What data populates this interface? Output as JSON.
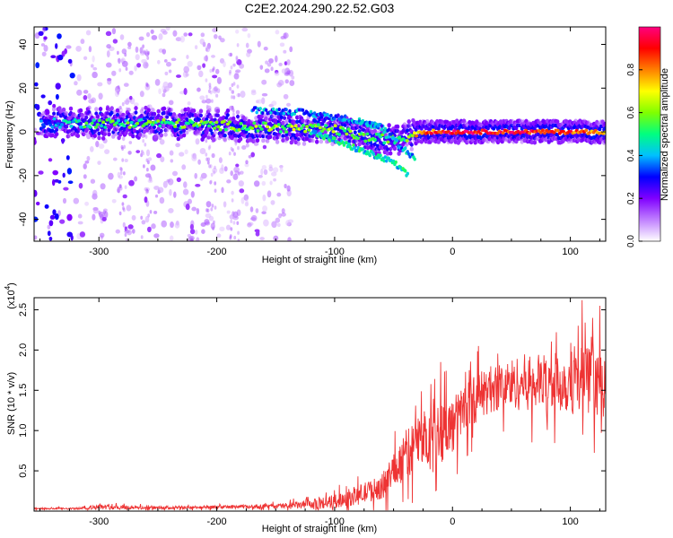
{
  "figure": {
    "title": "C2E2.2024.290.22.52.G03"
  },
  "chart_data": [
    {
      "type": "heatmap",
      "title": "C2E2.2024.290.22.52.G03",
      "xlabel": "Height of straight line (km)",
      "ylabel": "Frequency (Hz)",
      "xlim": [
        -355,
        130
      ],
      "ylim": [
        -50,
        48
      ],
      "x_ticks": [
        -300,
        -200,
        -100,
        0,
        100
      ],
      "y_ticks": [
        -40,
        -20,
        0,
        20,
        40
      ],
      "colorbar": {
        "label": "Normalized spectral amplitude",
        "range": [
          0,
          1
        ],
        "ticks": [
          "0.0",
          "0.2",
          "0.4",
          "0.6",
          "0.8"
        ],
        "colors": [
          "#ffffff",
          "#c080ff",
          "#8000ff",
          "#0000ff",
          "#00c0ff",
          "#00ff80",
          "#80ff00",
          "#ffff00",
          "#ff8000",
          "#ff0000",
          "#ff0080"
        ]
      },
      "ridge": [
        {
          "x": -350,
          "freq": 4,
          "amp": 0.35
        },
        {
          "x": -320,
          "freq": 4,
          "amp": 0.45
        },
        {
          "x": -300,
          "freq": 4,
          "amp": 0.5
        },
        {
          "x": -250,
          "freq": 4,
          "amp": 0.55
        },
        {
          "x": -200,
          "freq": 3,
          "amp": 0.55
        },
        {
          "x": -150,
          "freq": 2,
          "amp": 0.6
        },
        {
          "x": -100,
          "freq": 1,
          "amp": 0.6
        },
        {
          "x": -70,
          "freq": -3,
          "amp": 0.55
        },
        {
          "x": -40,
          "freq": -3,
          "amp": 0.5
        },
        {
          "x": -30,
          "freq": 0,
          "amp": 0.75
        },
        {
          "x": 0,
          "freq": 0,
          "amp": 0.95
        },
        {
          "x": 50,
          "freq": 0,
          "amp": 0.9
        },
        {
          "x": 100,
          "freq": 0,
          "amp": 0.85
        },
        {
          "x": 128,
          "freq": 0,
          "amp": 0.8
        }
      ],
      "branches": [
        {
          "points": [
            [
              -120,
              0
            ],
            [
              -80,
              -8
            ],
            [
              -50,
              -14
            ],
            [
              -38,
              -20
            ]
          ],
          "amp": 0.45
        },
        {
          "points": [
            [
              -80,
              5
            ],
            [
              -60,
              2
            ],
            [
              -45,
              -6
            ],
            [
              -32,
              -12
            ]
          ],
          "amp": 0.4
        },
        {
          "points": [
            [
              -170,
              10
            ],
            [
              -130,
              9
            ],
            [
              -90,
              6
            ],
            [
              -60,
              2
            ]
          ],
          "amp": 0.35
        }
      ]
    },
    {
      "type": "line",
      "xlabel": "Height of straight line (km)",
      "ylabel": "SNR (10 * v/v)",
      "y_multiplier": "(x10",
      "y_multiplier_exp": "4",
      "xlim": [
        -355,
        130
      ],
      "ylim": [
        0,
        2.65
      ],
      "x_ticks": [
        -300,
        -200,
        -100,
        0,
        100
      ],
      "y_ticks": [
        "0.5",
        "1.0",
        "1.5",
        "2.0",
        "2.5"
      ],
      "line_color": "#ee3333",
      "envelope": {
        "x": [
          -355,
          -320,
          -300,
          -250,
          -200,
          -150,
          -120,
          -100,
          -80,
          -60,
          -50,
          -40,
          -30,
          -20,
          -10,
          0,
          10,
          20,
          30,
          40,
          60,
          80,
          100,
          110,
          120,
          130
        ],
        "mean": [
          0.03,
          0.03,
          0.05,
          0.04,
          0.05,
          0.06,
          0.08,
          0.12,
          0.2,
          0.3,
          0.5,
          0.7,
          0.85,
          0.95,
          1.0,
          1.05,
          1.3,
          1.4,
          1.5,
          1.55,
          1.6,
          1.6,
          1.6,
          1.65,
          1.6,
          1.5
        ],
        "spread": [
          0.01,
          0.01,
          0.03,
          0.02,
          0.02,
          0.03,
          0.06,
          0.09,
          0.12,
          0.15,
          0.25,
          0.3,
          0.35,
          0.35,
          0.4,
          0.35,
          0.3,
          0.3,
          0.3,
          0.3,
          0.35,
          0.35,
          0.4,
          0.45,
          0.4,
          0.35
        ]
      },
      "peaks": [
        {
          "x": -10,
          "y": 1.85
        },
        {
          "x": 22,
          "y": 2.05
        },
        {
          "x": 110,
          "y": 2.62
        },
        {
          "x": 125,
          "y": 2.55
        }
      ]
    }
  ]
}
